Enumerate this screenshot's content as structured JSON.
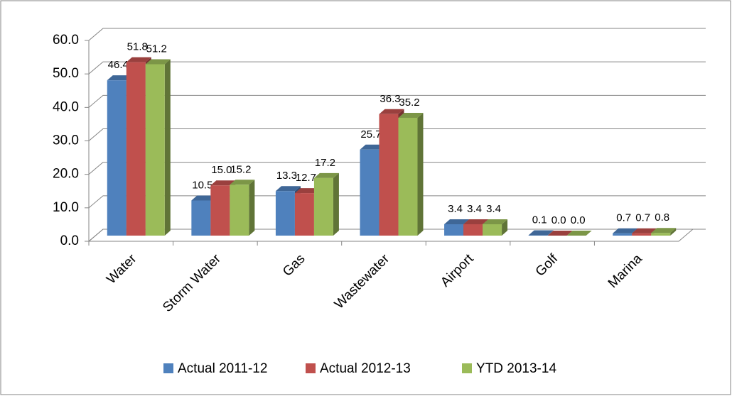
{
  "chart_data": {
    "type": "bar3d",
    "categories": [
      "Water",
      "Storm Water",
      "Gas",
      "Wastewater",
      "Airport",
      "Golf",
      "Marina"
    ],
    "series": [
      {
        "name": "Actual 2011-12",
        "color": "#4f81bd",
        "values": [
          46.4,
          10.5,
          13.3,
          25.7,
          3.4,
          0.1,
          0.7
        ],
        "value_labels": [
          "46.4",
          "10.5",
          "13.3",
          "25.7",
          "3.4",
          "0.1",
          "0.7"
        ]
      },
      {
        "name": "Actual 2012-13",
        "color": "#c0504d",
        "values": [
          51.8,
          15.0,
          12.7,
          36.3,
          3.4,
          0.0,
          0.7
        ],
        "value_labels": [
          "51.8",
          "15.0",
          "12.7",
          "36.3",
          "3.4",
          "0.0",
          "0.7"
        ]
      },
      {
        "name": "YTD 2013-14",
        "color": "#9bbb59",
        "values": [
          51.2,
          15.2,
          17.2,
          35.2,
          3.4,
          0.0,
          0.8
        ],
        "value_labels": [
          "51.2",
          "15.2",
          "17.2",
          "35.2",
          "3.4",
          "0.0",
          "0.8"
        ]
      }
    ],
    "ylim": [
      0,
      60
    ],
    "yticks": [
      {
        "value": 0,
        "label": "0.0"
      },
      {
        "value": 10,
        "label": "10.0"
      },
      {
        "value": 20,
        "label": "20.0"
      },
      {
        "value": 30,
        "label": "30.0"
      },
      {
        "value": 40,
        "label": "40.0"
      },
      {
        "value": 50,
        "label": "50.0"
      },
      {
        "value": 60,
        "label": "60.0"
      }
    ],
    "grid": true,
    "legend": "bottom"
  }
}
